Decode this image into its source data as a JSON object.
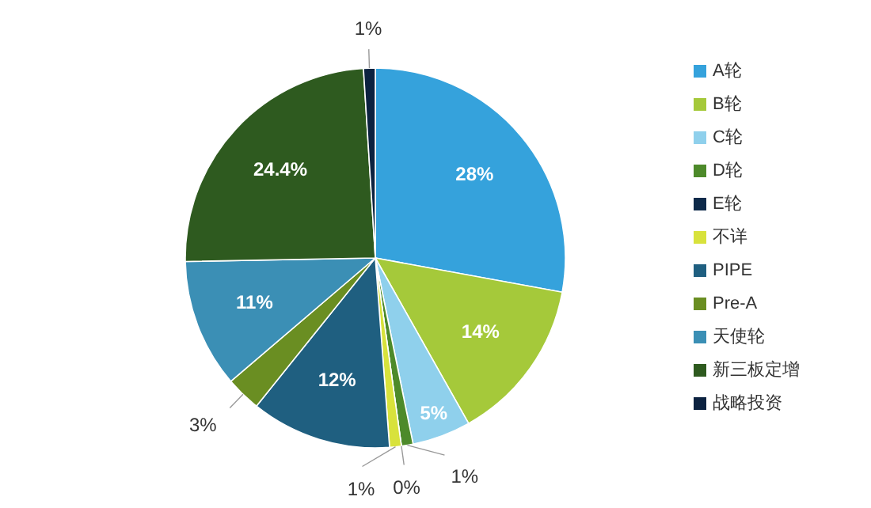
{
  "chart_data": {
    "type": "pie",
    "categories": [
      "A轮",
      "B轮",
      "C轮",
      "D轮",
      "E轮",
      "不详",
      "PIPE",
      "Pre-A",
      "天使轮",
      "新三板定增",
      "战略投资"
    ],
    "values": [
      28,
      14,
      5,
      1,
      0,
      1,
      12,
      3,
      11,
      24.4,
      1
    ],
    "colors": [
      "#35a2dc",
      "#a5c93a",
      "#8fd0ec",
      "#4d8a2a",
      "#0e2a4a",
      "#d8e23c",
      "#1f5f80",
      "#6a8e22",
      "#3b8fb5",
      "#2e5a1f",
      "#0c2240"
    ],
    "value_labels": [
      "28%",
      "14%",
      "5%",
      "1%",
      "0%",
      "1%",
      "12%",
      "3%",
      "11%",
      "24.4%",
      "1%"
    ],
    "legend": "right"
  }
}
